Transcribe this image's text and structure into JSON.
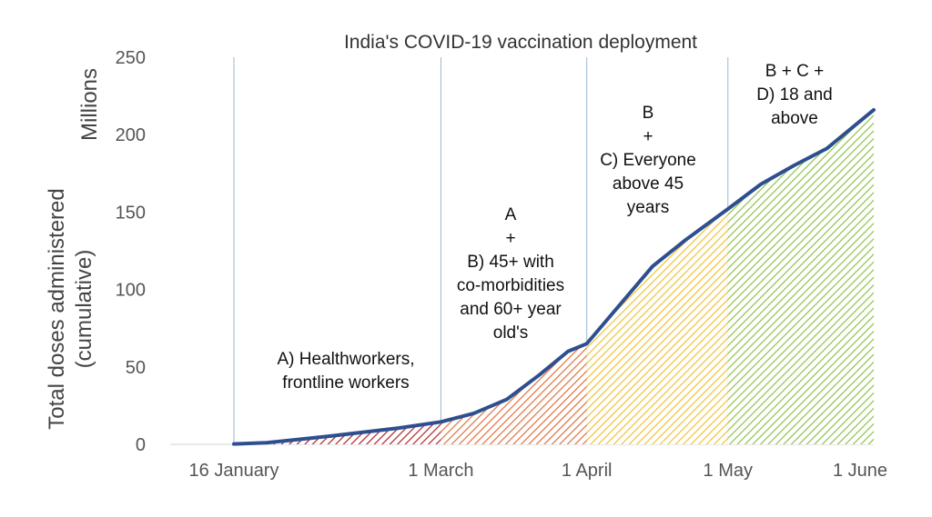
{
  "chart_data": {
    "type": "area",
    "title": "India's COVID-19 vaccination deployment",
    "ylabel_lines": [
      "Total doses administered",
      "(cumulative)"
    ],
    "yunit": "Millions",
    "ylim": [
      0,
      250
    ],
    "yticks": [
      0,
      50,
      100,
      150,
      200,
      250
    ],
    "grid": false,
    "x_range": [
      "2021-01-16",
      "2021-06-01"
    ],
    "xticks": [
      {
        "date": "2021-01-16",
        "label": "16 January"
      },
      {
        "date": "2021-03-01",
        "label": "1 March"
      },
      {
        "date": "2021-04-01",
        "label": "1 April"
      },
      {
        "date": "2021-05-01",
        "label": "1 May"
      },
      {
        "date": "2021-06-01",
        "label": "1 June"
      }
    ],
    "series": [
      {
        "color": "#2e4f8f",
        "points": [
          [
            "2021-01-16",
            0.2
          ],
          [
            "2021-01-23",
            1.0
          ],
          [
            "2021-01-30",
            3.2
          ],
          [
            "2021-02-06",
            5.5
          ],
          [
            "2021-02-13",
            8.0
          ],
          [
            "2021-02-20",
            10.5
          ],
          [
            "2021-03-01",
            14.5
          ],
          [
            "2021-03-08",
            20.0
          ],
          [
            "2021-03-15",
            29.0
          ],
          [
            "2021-03-22",
            45.0
          ],
          [
            "2021-03-28",
            60.0
          ],
          [
            "2021-04-01",
            65.0
          ],
          [
            "2021-04-08",
            90.0
          ],
          [
            "2021-04-15",
            115.0
          ],
          [
            "2021-04-22",
            132.0
          ],
          [
            "2021-05-01",
            152.0
          ],
          [
            "2021-05-08",
            168.0
          ],
          [
            "2021-05-15",
            180.0
          ],
          [
            "2021-05-22",
            191.0
          ],
          [
            "2021-06-01",
            216.0
          ]
        ]
      }
    ],
    "phases": [
      {
        "start": "2021-01-16",
        "end": "2021-03-01",
        "color": "#b0202a",
        "label_lines": [
          "A) Healthworkers,",
          "frontline workers"
        ]
      },
      {
        "start": "2021-03-01",
        "end": "2021-04-01",
        "color": "#e0703a",
        "label_lines": [
          "A",
          "+",
          "B) 45+ with",
          "co-morbidities",
          "and 60+ year",
          "old's"
        ]
      },
      {
        "start": "2021-04-01",
        "end": "2021-05-01",
        "color": "#f2c233",
        "label_lines": [
          "B",
          "+",
          "C) Everyone",
          "above 45",
          "years"
        ]
      },
      {
        "start": "2021-05-01",
        "end": "2021-06-01",
        "color": "#8cc24a",
        "label_lines": [
          "B + C +",
          "D) 18 and",
          "above"
        ]
      }
    ]
  }
}
